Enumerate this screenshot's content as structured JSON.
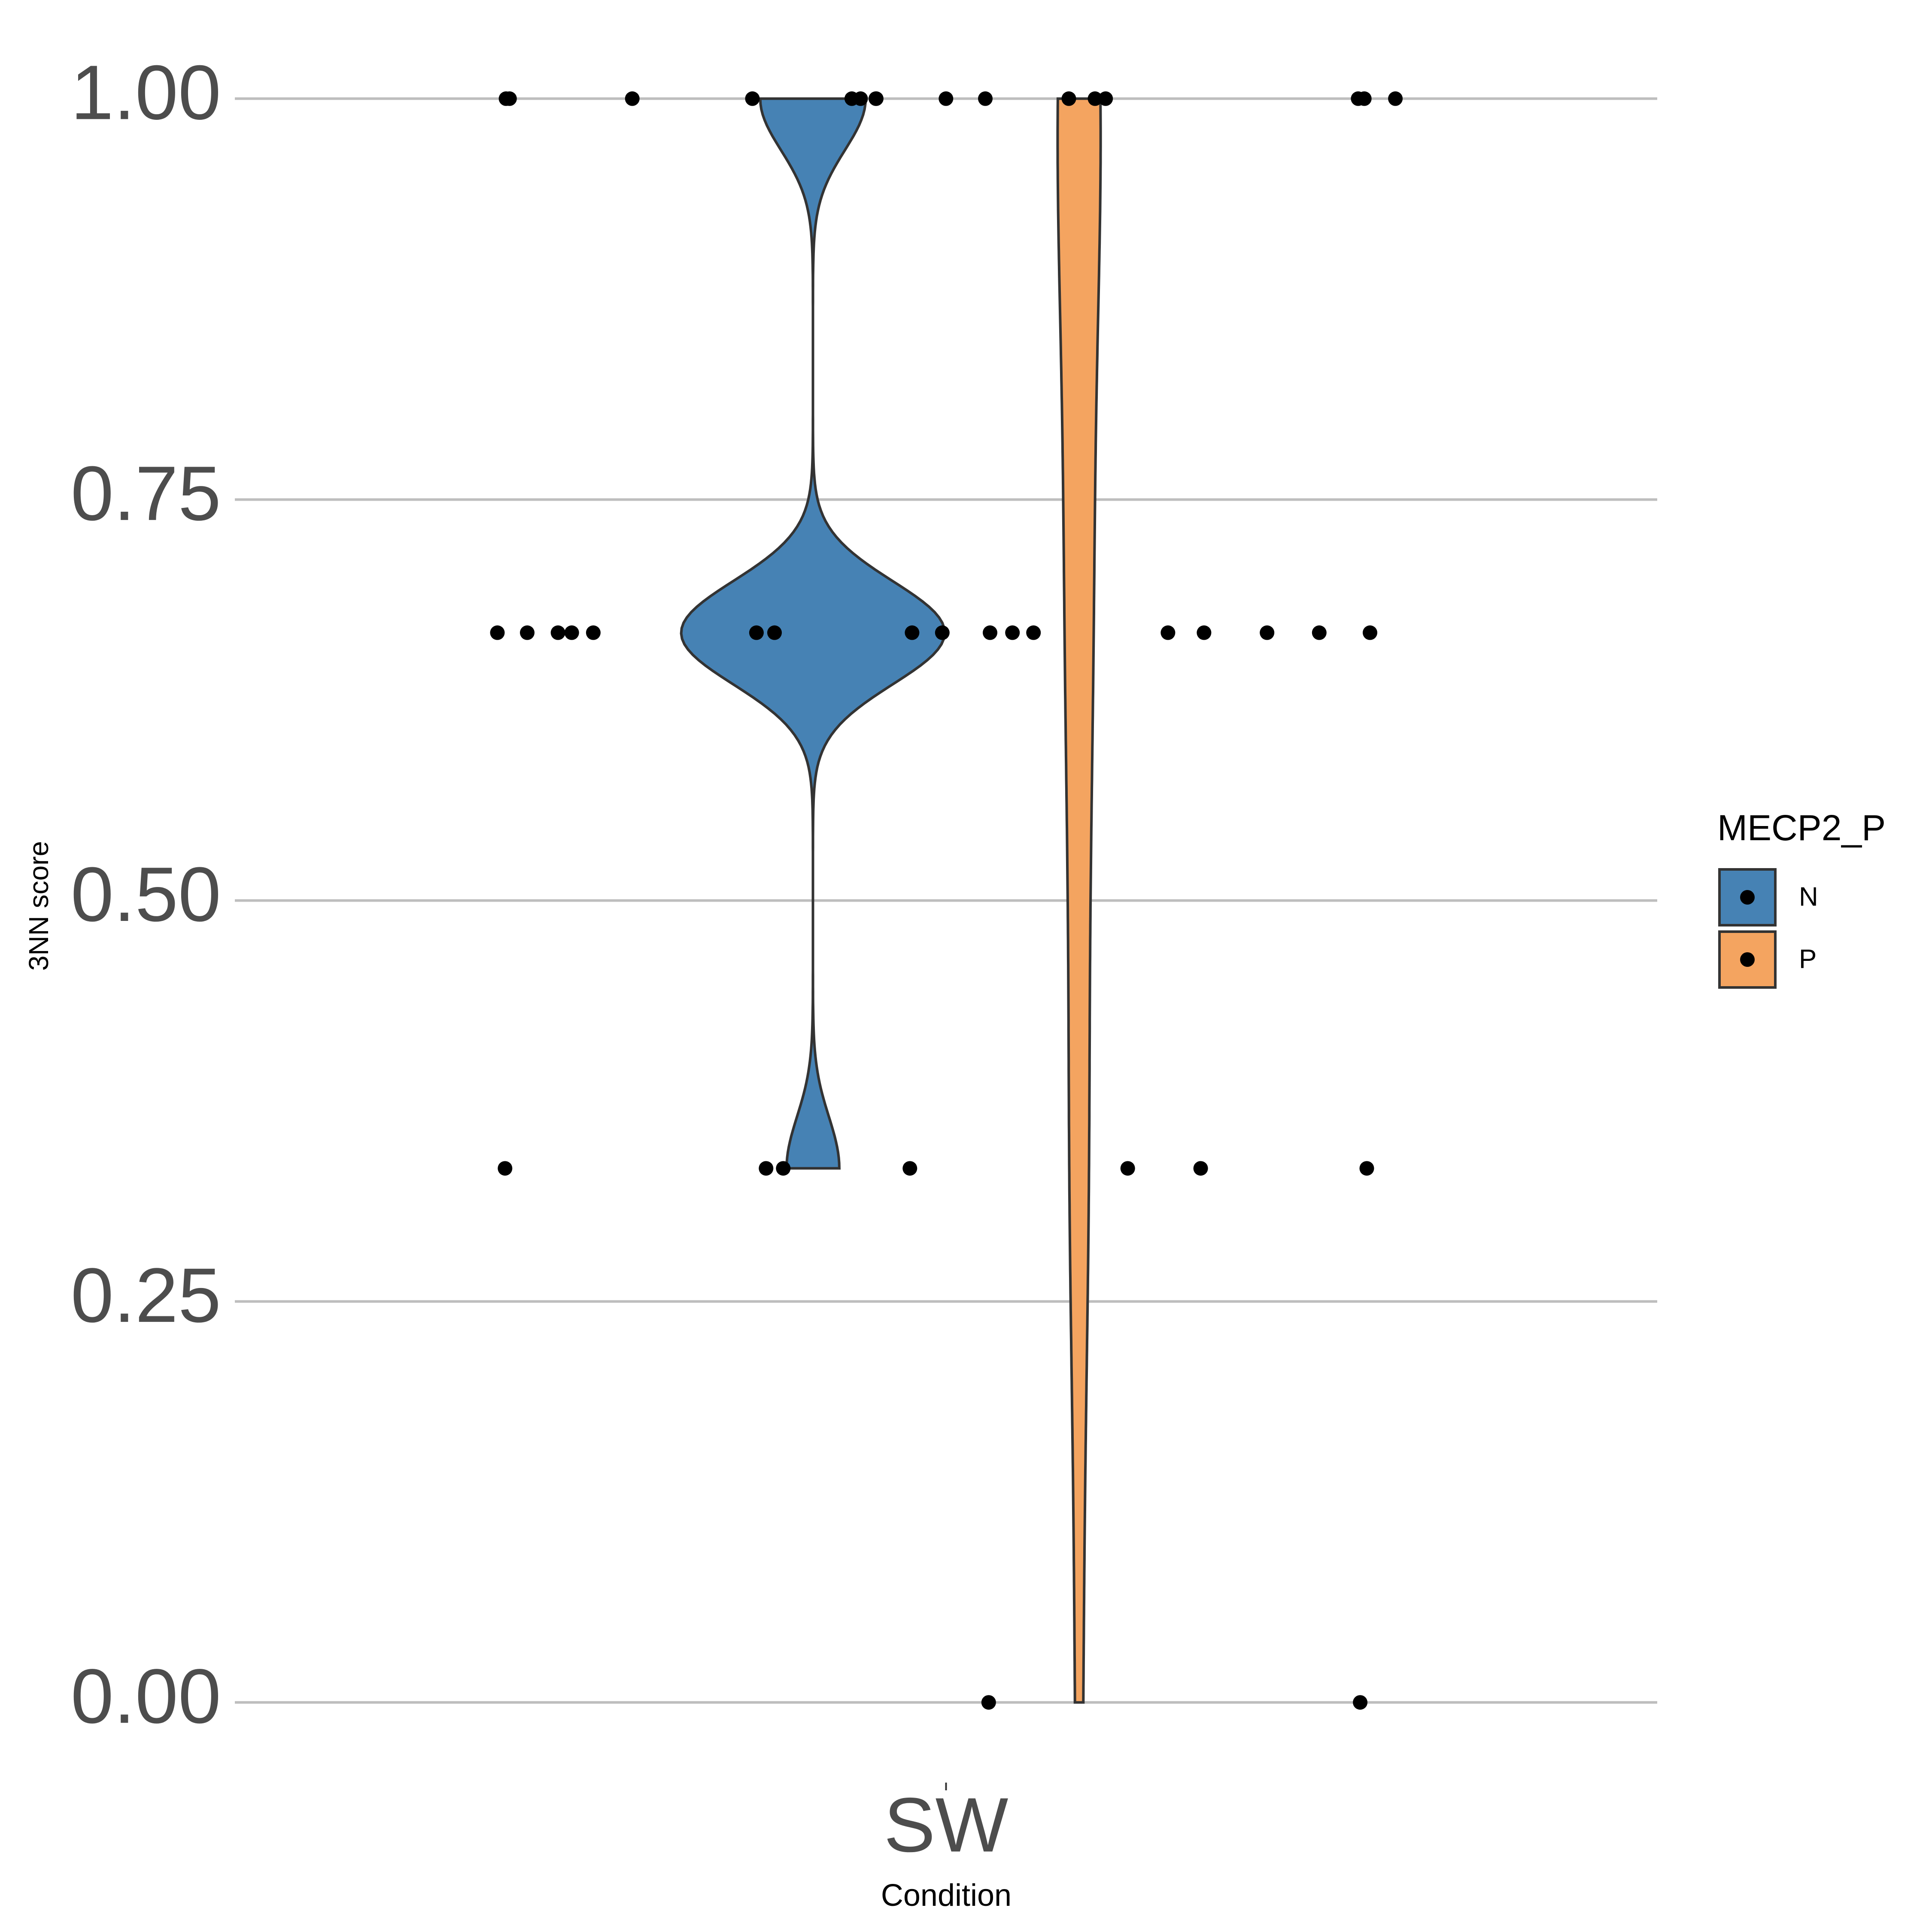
{
  "chart_data": {
    "type": "violin",
    "x_label": "Condition",
    "y_label": "3NN score",
    "categories": [
      "SW"
    ],
    "legend_title": "MECP2_P",
    "series": [
      {
        "name": "N",
        "color": "#4682b4",
        "values": [
          1,
          1,
          1,
          1,
          0.667,
          0.667,
          0.667,
          0.667,
          0.667,
          0.667,
          0.667,
          0.667,
          0.667,
          0.667,
          0.333,
          0.333
        ]
      },
      {
        "name": "P",
        "color": "#f4a460",
        "values": [
          1,
          1,
          1,
          1,
          1,
          1,
          1,
          1,
          1,
          1,
          1,
          1,
          0.667,
          0.667,
          0.667,
          0.667,
          0.667,
          0.667,
          0.667,
          0.333,
          0.333,
          0.333,
          0.333,
          0.333,
          0,
          0
        ]
      }
    ],
    "ylim": [
      -0.05,
      1.05
    ],
    "yticks": [
      {
        "value": 0,
        "label": "0.00"
      },
      {
        "value": 0.25,
        "label": "0.25"
      },
      {
        "value": 0.5,
        "label": "0.50"
      },
      {
        "value": 0.75,
        "label": "0.75"
      },
      {
        "value": 1,
        "label": "1.00"
      }
    ],
    "grid": true
  }
}
